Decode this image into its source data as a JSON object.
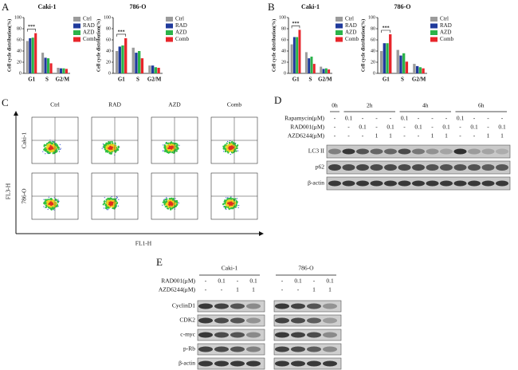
{
  "panel_letters": [
    "A",
    "B",
    "C",
    "D",
    "E"
  ],
  "chart_data": [
    {
      "type": "bar",
      "title": "Caki-1",
      "ylabel": "Cell cycle distribution(%)",
      "categories": [
        "G1",
        "S",
        "G2/M"
      ],
      "series": [
        {
          "name": "Ctrl",
          "color": "#9b9b9b",
          "values": [
            58,
            37,
            10
          ]
        },
        {
          "name": "RAD",
          "color": "#1f3a9c",
          "values": [
            63,
            28,
            9
          ]
        },
        {
          "name": "AZD",
          "color": "#2bb34a",
          "values": [
            64,
            27,
            9
          ]
        },
        {
          "name": "Comb",
          "color": "#e8252b",
          "values": [
            72,
            18,
            8
          ]
        }
      ],
      "ylim": [
        0,
        100
      ],
      "yticks": [
        0,
        20,
        40,
        60,
        80,
        100
      ],
      "annotation": "***"
    },
    {
      "type": "bar",
      "title": "786-O",
      "ylabel": "Cell cycle distribution(%)",
      "categories": [
        "G1",
        "S",
        "G2/M"
      ],
      "series": [
        {
          "name": "Ctrl",
          "color": "#9b9b9b",
          "values": [
            40,
            46,
            14
          ]
        },
        {
          "name": "RAD",
          "color": "#1f3a9c",
          "values": [
            48,
            37,
            14
          ]
        },
        {
          "name": "AZD",
          "color": "#2bb34a",
          "values": [
            50,
            40,
            11
          ]
        },
        {
          "name": "Comb",
          "color": "#e8252b",
          "values": [
            63,
            27,
            10
          ]
        }
      ],
      "ylim": [
        0,
        100
      ],
      "yticks": [
        0,
        20,
        40,
        60,
        80,
        100
      ],
      "annotation": "***"
    },
    {
      "type": "bar",
      "title": "Caki-1",
      "ylabel": "Cell cycle distribution(%)",
      "categories": [
        "G1",
        "S",
        "G2/M"
      ],
      "series": [
        {
          "name": "Ctrl",
          "color": "#9b9b9b",
          "values": [
            52,
            38,
            12
          ]
        },
        {
          "name": "RAD",
          "color": "#1f3a9c",
          "values": [
            65,
            27,
            8
          ]
        },
        {
          "name": "AZD",
          "color": "#2bb34a",
          "values": [
            65,
            30,
            9
          ]
        },
        {
          "name": "Comb",
          "color": "#e8252b",
          "values": [
            78,
            17,
            7
          ]
        }
      ],
      "ylim": [
        0,
        100
      ],
      "yticks": [
        0,
        20,
        40,
        60,
        80,
        100
      ],
      "annotation": "***"
    },
    {
      "type": "bar",
      "title": "786-O",
      "ylabel": "Cell cycle distribution(%)",
      "categories": [
        "G1",
        "S",
        "G2/M"
      ],
      "series": [
        {
          "name": "Ctrl",
          "color": "#9b9b9b",
          "values": [
            40,
            42,
            17
          ]
        },
        {
          "name": "RAD",
          "color": "#1f3a9c",
          "values": [
            54,
            32,
            13
          ]
        },
        {
          "name": "AZD",
          "color": "#2bb34a",
          "values": [
            54,
            36,
            11
          ]
        },
        {
          "name": "Comb",
          "color": "#e8252b",
          "values": [
            70,
            21,
            9
          ]
        }
      ],
      "ylim": [
        0,
        100
      ],
      "yticks": [
        0,
        20,
        40,
        60,
        80,
        100
      ],
      "annotation": "***"
    }
  ],
  "flow": {
    "columns": [
      "Ctrl",
      "RAD",
      "AZD",
      "Comb"
    ],
    "rows": [
      "Caki-1",
      "786-O"
    ],
    "y_axis": "FL3-H",
    "x_axis": "FL1-H"
  },
  "blot_d": {
    "times": [
      "0h",
      "2h",
      "4h",
      "6h"
    ],
    "treatments": [
      {
        "label": "Rapamycin(μM)",
        "lanes": [
          "-",
          "0.1",
          "-",
          "-",
          "-",
          "0.1",
          "-",
          "-",
          "-",
          "0.1",
          "-",
          "-",
          "-"
        ]
      },
      {
        "label": "RAD001(μM)",
        "lanes": [
          "-",
          "-",
          "0.1",
          "-",
          "0.1",
          "-",
          "0.1",
          "-",
          "0.1",
          "-",
          "0.1",
          "-",
          "0.1"
        ]
      },
      {
        "label": "AZD6244(μM)",
        "lanes": [
          "-",
          "-",
          "-",
          "1",
          "1",
          "-",
          "-",
          "1",
          "1",
          "-",
          "-",
          "1",
          "1"
        ]
      }
    ],
    "proteins": [
      "LC3 II",
      "p62",
      "β-actin"
    ]
  },
  "blot_e": {
    "groups": [
      "Caki-1",
      "786-O"
    ],
    "treatments": [
      {
        "label": "RAD001(μM)",
        "lanes": [
          "-",
          "0.1",
          "-",
          "0.1",
          "-",
          "0.1",
          "-",
          "0.1"
        ]
      },
      {
        "label": "AZD6244(μM)",
        "lanes": [
          "-",
          "-",
          "1",
          "1",
          "-",
          "-",
          "1",
          "1"
        ]
      }
    ],
    "proteins": [
      "CyclinD1",
      "CDK2",
      "c-myc",
      "p-Rb",
      "β-actin"
    ]
  }
}
